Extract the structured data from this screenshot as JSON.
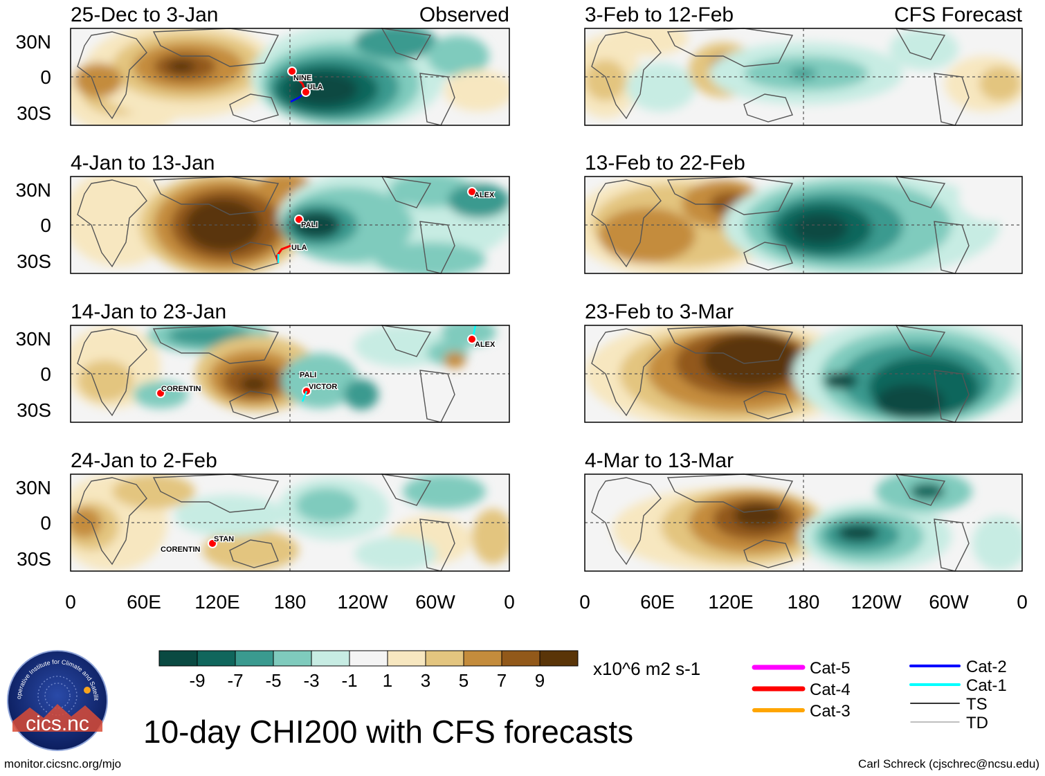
{
  "title": "10-day CHI200 with CFS forecasts",
  "source_url": "monitor.cicsnc.org/mjo",
  "credit": "Carl Schreck (cjschrec@ncsu.edu)",
  "logo": {
    "name": "cics.nc",
    "ring_text": "Cooperative Institute for Climate and Satellites"
  },
  "colorbar": {
    "units": "x10^6 m2 s-1",
    "ticks": [
      "-9",
      "-7",
      "-5",
      "-3",
      "-1",
      "1",
      "3",
      "5",
      "7",
      "9"
    ],
    "colors": [
      "#0a4a42",
      "#10665c",
      "#3a9a8f",
      "#7fcbbd",
      "#c7ece3",
      "#f4f4f4",
      "#f7e7c0",
      "#e3c57f",
      "#c48c3c",
      "#92591a",
      "#5a3508"
    ]
  },
  "axes": {
    "lat_labels": [
      "30N",
      "0",
      "30S"
    ],
    "lon_labels": [
      "0",
      "60E",
      "120E",
      "180",
      "120W",
      "60W",
      "0"
    ]
  },
  "legend": {
    "left": [
      {
        "label": "Cat-5",
        "color": "#ff00ff"
      },
      {
        "label": "Cat-4",
        "color": "#ff0000"
      },
      {
        "label": "Cat-3",
        "color": "#ffa500"
      }
    ],
    "right": [
      {
        "label": "Cat-2",
        "color": "#0000ff"
      },
      {
        "label": "Cat-1",
        "color": "#00ffff"
      },
      {
        "label": "TS",
        "color": "#333333"
      },
      {
        "label": "TD",
        "color": "#999999"
      }
    ]
  },
  "panels": [
    {
      "id": "p1",
      "title": "25-Dec to 3-Jan",
      "right_label": "Observed",
      "storms": [
        "NINE",
        "ULA"
      ]
    },
    {
      "id": "p2",
      "title": "4-Jan to 13-Jan",
      "right_label": "",
      "storms": [
        "ALEX",
        "PALI",
        "ULA"
      ]
    },
    {
      "id": "p3",
      "title": "14-Jan to 23-Jan",
      "right_label": "",
      "storms": [
        "ALEX",
        "CORENTIN",
        "PALI",
        "VICTOR"
      ]
    },
    {
      "id": "p4",
      "title": "24-Jan to 2-Feb",
      "right_label": "",
      "storms": [
        "STAN",
        "CORENTIN"
      ]
    },
    {
      "id": "p5",
      "title": "3-Feb to 12-Feb",
      "right_label": "CFS Forecast",
      "storms": []
    },
    {
      "id": "p6",
      "title": "13-Feb to 22-Feb",
      "right_label": "",
      "storms": []
    },
    {
      "id": "p7",
      "title": "23-Feb to 3-Mar",
      "right_label": "",
      "storms": []
    },
    {
      "id": "p8",
      "title": "4-Mar to 13-Mar",
      "right_label": "",
      "storms": []
    }
  ]
}
